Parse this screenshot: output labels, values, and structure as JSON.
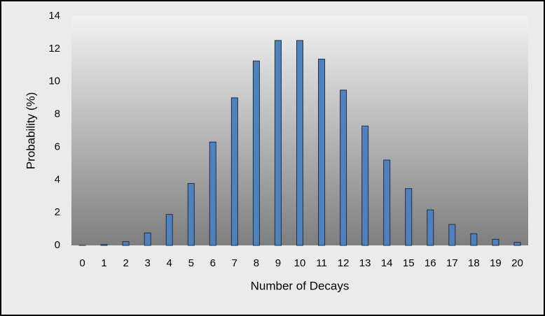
{
  "chart_data": {
    "type": "bar",
    "x_label": "Number of Decays",
    "y_label": "Probability (%)",
    "categories": [
      "0",
      "1",
      "2",
      "3",
      "4",
      "5",
      "6",
      "7",
      "8",
      "9",
      "10",
      "11",
      "12",
      "13",
      "14",
      "15",
      "16",
      "17",
      "18",
      "19",
      "20"
    ],
    "values": [
      0.005,
      0.05,
      0.23,
      0.76,
      1.89,
      3.78,
      6.31,
      9.01,
      11.26,
      12.51,
      12.51,
      11.37,
      9.48,
      7.29,
      5.21,
      3.47,
      2.17,
      1.28,
      0.71,
      0.37,
      0.19
    ],
    "color": "#4f81bd",
    "ylim": [
      0,
      14
    ],
    "yticks": [
      0,
      2,
      4,
      6,
      8,
      10,
      12,
      14
    ],
    "grid": false
  }
}
